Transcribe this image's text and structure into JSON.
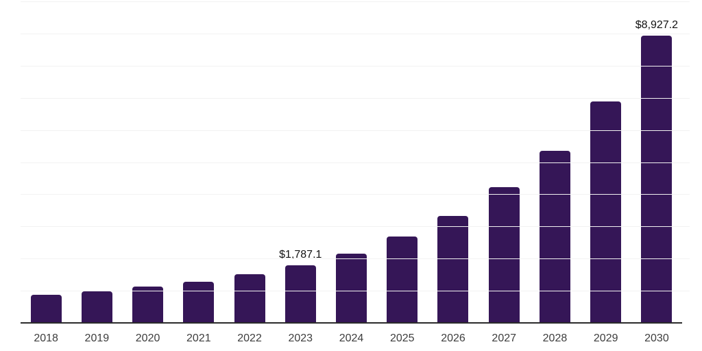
{
  "chart_data": {
    "type": "bar",
    "title": "",
    "xlabel": "",
    "ylabel": "",
    "categories": [
      "2018",
      "2019",
      "2020",
      "2021",
      "2022",
      "2023",
      "2024",
      "2025",
      "2026",
      "2027",
      "2028",
      "2029",
      "2030"
    ],
    "values": [
      885,
      990,
      1120,
      1275,
      1510,
      1787.1,
      2160,
      2690,
      3330,
      4215,
      5360,
      6890,
      8927.2
    ],
    "labeled_points": [
      {
        "category": "2023",
        "label": "$1,787.1"
      },
      {
        "category": "2030",
        "label": "$8,927.2"
      }
    ],
    "ylim": [
      0,
      10000
    ],
    "gridline_step": 1000,
    "grid": true,
    "legend": false,
    "y_axis_tick_labels_visible": false,
    "colors": {
      "bar": "#351657",
      "gridline": "#f2f2f2",
      "axis_line": "#2b2b2b",
      "value_label": "#111111",
      "tick_label": "#3d3d3d",
      "background": "#ffffff"
    }
  }
}
